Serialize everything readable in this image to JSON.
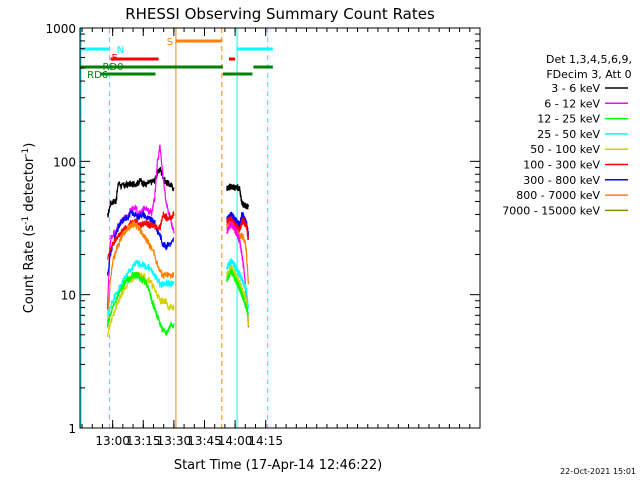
{
  "chart_data": {
    "type": "line",
    "title": "RHESSI Observing Summary Count Rates",
    "xlabel": "Start Time (17-Apr-14 12:46:22)",
    "ylabel_main": "Count Rate (s",
    "ylabel_sup1": "-1",
    "ylabel_mid": " detector",
    "ylabel_sup2": "-1",
    "ylabel_end": ")",
    "x_start": "12:46",
    "x_range_min": [
      0,
      196
    ],
    "y_scale": "log",
    "ylim": [
      1,
      1000
    ],
    "x_ticks": [
      {
        "t": 16,
        "label": "13:00"
      },
      {
        "t": 31,
        "label": "13:15"
      },
      {
        "t": 46,
        "label": "13:30"
      },
      {
        "t": 61,
        "label": "13:45"
      },
      {
        "t": 76,
        "label": "14:00"
      },
      {
        "t": 91,
        "label": "14:15"
      }
    ],
    "y_ticks": [
      {
        "v": 1,
        "label": "1"
      },
      {
        "v": 10,
        "label": "10"
      },
      {
        "v": 100,
        "label": "100"
      },
      {
        "v": 1000,
        "label": "1000"
      }
    ],
    "legend_header": [
      "Det 1,3,4,5,6,9,",
      "FDecim 3, Att 0"
    ],
    "legend": [
      {
        "label": "3 - 6 keV",
        "color": "#000000"
      },
      {
        "label": "6 - 12 keV",
        "color": "#ff00ff"
      },
      {
        "label": "12 - 25 keV",
        "color": "#00ff00"
      },
      {
        "label": "25 - 50 keV",
        "color": "#00ffff"
      },
      {
        "label": "50 - 100 keV",
        "color": "#d2d200"
      },
      {
        "label": "100 - 300 keV",
        "color": "#ff0000"
      },
      {
        "label": "300 - 800 keV",
        "color": "#0000ff"
      },
      {
        "label": "800 - 7000 keV",
        "color": "#ff8000"
      },
      {
        "label": "7000 - 15000 keV",
        "color": "#8b8b00"
      }
    ],
    "flag_labels": [
      {
        "text": "N",
        "color": "#00ffff"
      },
      {
        "text": "F",
        "color": "#ff0000"
      },
      {
        "text": "RD0",
        "color": "#008000"
      },
      {
        "text": "RD6",
        "color": "#008000"
      },
      {
        "text": "S",
        "color": "#ff8000"
      }
    ],
    "timestamp": "22-Oct-2021 15:01",
    "segments": [
      {
        "t_start": 13.5,
        "t_end": 46.0,
        "series": [
          {
            "color": "#000000",
            "values": [
              38,
              48,
              50,
              50,
              70,
              65,
              66,
              66,
              68,
              67,
              68,
              69,
              72,
              68,
              67,
              69,
              70,
              72,
              80,
              88,
              78,
              70,
              68,
              66,
              62
            ]
          },
          {
            "color": "#ff00ff",
            "values": [
              8,
              26,
              28,
              30,
              34,
              35,
              37,
              38,
              42,
              44,
              45,
              42,
              40,
              44,
              45,
              42,
              42,
              52,
              95,
              130,
              80,
              52,
              42,
              35,
              30
            ]
          },
          {
            "color": "#0000ff",
            "values": [
              14,
              20,
              24,
              28,
              32,
              35,
              37,
              38,
              40,
              41,
              40,
              38,
              40,
              40,
              38,
              37,
              36,
              35,
              30,
              28,
              24,
              23,
              24,
              24,
              26
            ]
          },
          {
            "color": "#ff0000",
            "values": [
              18,
              22,
              24,
              26,
              28,
              29,
              31,
              32,
              34,
              35,
              36,
              35,
              33,
              34,
              35,
              33,
              33,
              33,
              32,
              32,
              40,
              38,
              38,
              38,
              40
            ]
          },
          {
            "color": "#ff8000",
            "values": [
              6,
              13,
              18,
              21,
              24,
              27,
              29,
              31,
              32,
              34,
              33,
              32,
              30,
              28,
              26,
              24,
              22,
              20,
              17,
              15,
              14,
              14,
              14,
              14,
              14
            ]
          },
          {
            "color": "#00ffff",
            "values": [
              7,
              8,
              9,
              10,
              11,
              12,
              13,
              14,
              15,
              16,
              17,
              17,
              17,
              17,
              16,
              16,
              15,
              14,
              13,
              12,
              12,
              12,
              12,
              12,
              12
            ]
          },
          {
            "color": "#d2d200",
            "values": [
              5,
              6,
              7,
              8,
              9,
              10,
              11,
              12,
              13,
              13,
              14,
              14,
              14,
              14,
              13,
              13,
              12,
              11,
              10,
              9,
              9,
              9,
              8,
              8,
              8
            ]
          },
          {
            "color": "#00ff00",
            "values": [
              6,
              7,
              8,
              9,
              10,
              11,
              12,
              13,
              13,
              14,
              14,
              14,
              13,
              13,
              12,
              11,
              9,
              8,
              7,
              6,
              5.5,
              5,
              5.5,
              6,
              6
            ]
          }
        ]
      },
      {
        "t_start": 72.0,
        "t_end": 82.5,
        "series": [
          {
            "color": "#000000",
            "values": [
              63,
              64,
              65,
              64,
              63,
              64,
              62,
              48,
              47,
              46,
              46
            ]
          },
          {
            "color": "#0000ff",
            "values": [
              37,
              38,
              40,
              38,
              36,
              35,
              33,
              40,
              38,
              35,
              28
            ]
          },
          {
            "color": "#ff0000",
            "values": [
              35,
              36,
              37,
              35,
              33,
              32,
              30,
              36,
              35,
              33,
              26
            ]
          },
          {
            "color": "#ff8000",
            "values": [
              32,
              33,
              34,
              32,
              30,
              29,
              27,
              28,
              26,
              22,
              12
            ]
          },
          {
            "color": "#ff00ff",
            "values": [
              30,
              32,
              34,
              32,
              30,
              28,
              25,
              20,
              15,
              10,
              6
            ]
          },
          {
            "color": "#00ffff",
            "values": [
              16,
              17,
              18,
              17,
              16,
              15,
              14,
              13,
              12,
              11,
              8
            ]
          },
          {
            "color": "#d2d200",
            "values": [
              14,
              15,
              16,
              15,
              14,
              13,
              12,
              11,
              10,
              9,
              6
            ]
          },
          {
            "color": "#00ff00",
            "values": [
              13,
              14,
              15,
              14,
              13,
              12,
              11,
              10,
              9,
              8,
              7
            ]
          }
        ]
      }
    ],
    "vertical_lines": [
      {
        "t": 0.5,
        "color": "#00ffff",
        "dash": false
      },
      {
        "t": 14.5,
        "color": "#00ffff",
        "dash": true
      },
      {
        "t": 47.0,
        "color": "#ff8000",
        "dash": false
      },
      {
        "t": 69.5,
        "color": "#ff8000",
        "dash": true
      },
      {
        "t": 77.0,
        "color": "#00ffff",
        "dash": false
      },
      {
        "t": 92.0,
        "color": "#00ffff",
        "dash": true
      }
    ],
    "flag_bars": [
      {
        "flag": "N",
        "color": "#00ffff",
        "t_start": 0.0,
        "t_end": 14.5,
        "level": 1
      },
      {
        "flag": "N",
        "color": "#00ffff",
        "t_start": 77.0,
        "t_end": 94.5,
        "level": 1
      },
      {
        "flag": "F",
        "color": "#ff0000",
        "t_start": 15.0,
        "t_end": 38.5,
        "level": 2
      },
      {
        "flag": "F",
        "color": "#ff0000",
        "t_start": 73.0,
        "t_end": 76.0,
        "level": 2
      },
      {
        "flag": "S",
        "color": "#ff8000",
        "t_start": 47.0,
        "t_end": 69.5,
        "level": 0
      },
      {
        "flag": "RD0",
        "color": "#008000",
        "t_start": 0.0,
        "t_end": 38.0,
        "level": 3
      },
      {
        "flag": "RD0",
        "color": "#008000",
        "t_start": 38.0,
        "t_end": 70.0,
        "level": 3
      },
      {
        "flag": "RD0",
        "color": "#008000",
        "t_start": 70.0,
        "t_end": 84.5,
        "level": 4
      },
      {
        "flag": "RD0",
        "color": "#008000",
        "t_start": 85.0,
        "t_end": 94.5,
        "level": 3
      },
      {
        "flag": "RD6",
        "color": "#008000",
        "t_start": 10.0,
        "t_end": 37.0,
        "level": 4
      }
    ]
  }
}
